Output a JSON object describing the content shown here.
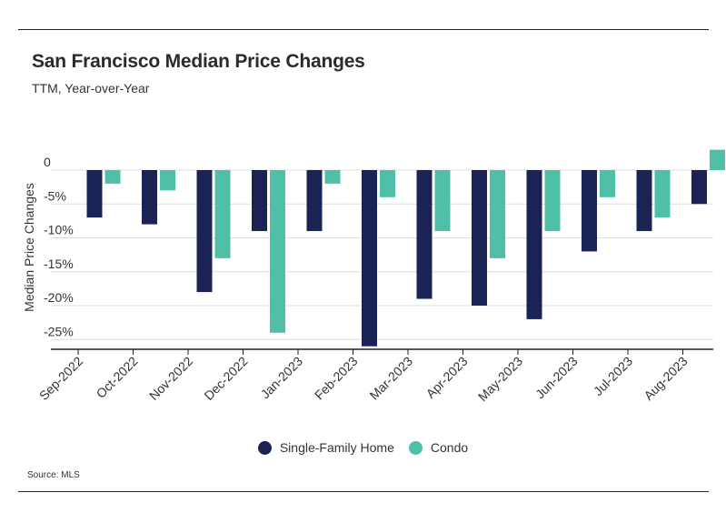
{
  "title": "San Francisco Median Price Changes",
  "subtitle": "TTM, Year-over-Year",
  "source": "Source:  MLS",
  "colors": {
    "sfh": "#1b2355",
    "condo": "#4fbfa8",
    "grid": "#dddddd",
    "axis": "#222222"
  },
  "chart_data": {
    "type": "bar",
    "title": "San Francisco Median Price Changes",
    "subtitle": "TTM, Year-over-Year",
    "xlabel": "",
    "ylabel": "Median Price Changes",
    "ylim": [
      -26.5,
      3
    ],
    "yticks": [
      0,
      -5,
      -10,
      -15,
      -20,
      -25
    ],
    "ytick_labels": [
      "0",
      "-5%",
      "-10%",
      "-15%",
      "-20%",
      "-25%"
    ],
    "grid": true,
    "legend_position": "bottom-center",
    "categories": [
      "Sep-2022",
      "Oct-2022",
      "Nov-2022",
      "Dec-2022",
      "Jan-2023",
      "Feb-2023",
      "Mar-2023",
      "Apr-2023",
      "May-2023",
      "Jun-2023",
      "Jul-2023",
      "Aug-2023"
    ],
    "series": [
      {
        "name": "Single-Family Home",
        "values": [
          -7,
          -8,
          -18,
          -9,
          -9,
          -26,
          -19,
          -20,
          -22,
          -12,
          -9,
          -5
        ]
      },
      {
        "name": "Condo",
        "values": [
          -2,
          -3,
          -13,
          -24,
          -2,
          -4,
          -9,
          -13,
          -9,
          -4,
          -7,
          3
        ]
      }
    ]
  }
}
